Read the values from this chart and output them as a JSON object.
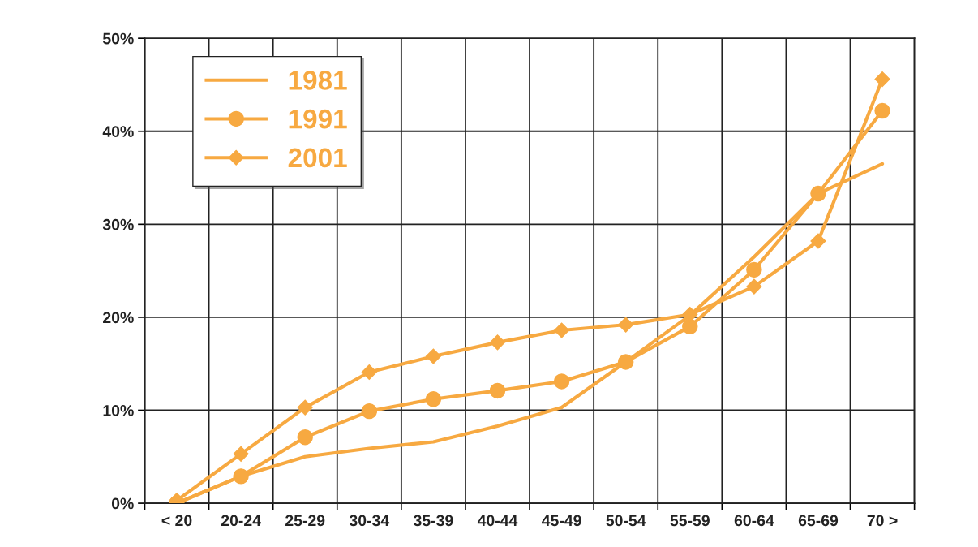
{
  "chart_data": {
    "type": "line",
    "categories": [
      "< 20",
      "20-24",
      "25-29",
      "30-34",
      "35-39",
      "40-44",
      "45-49",
      "50-54",
      "55-59",
      "60-64",
      "65-69",
      "70 >"
    ],
    "series": [
      {
        "name": "1981",
        "color": "#f7a941",
        "marker": "none",
        "values": [
          0,
          2.9,
          5.0,
          5.9,
          6.6,
          8.3,
          10.3,
          15.2,
          20.2,
          26.5,
          33.3,
          36.5
        ]
      },
      {
        "name": "1991",
        "color": "#f7a941",
        "marker": "circle",
        "values": [
          0,
          2.9,
          7.1,
          9.9,
          11.2,
          12.1,
          13.1,
          15.2,
          19.0,
          25.1,
          33.3,
          42.2
        ]
      },
      {
        "name": "2001",
        "color": "#f7a941",
        "marker": "diamond",
        "values": [
          0.3,
          5.3,
          10.3,
          14.1,
          15.8,
          17.3,
          18.6,
          19.2,
          20.3,
          23.3,
          28.2,
          45.6
        ]
      }
    ],
    "ylim": [
      0,
      50
    ],
    "yticks": [
      {
        "value": 0,
        "label": "0%"
      },
      {
        "value": 10,
        "label": "10%"
      },
      {
        "value": 20,
        "label": "20%"
      },
      {
        "value": 30,
        "label": "30%"
      },
      {
        "value": 40,
        "label": "40%"
      },
      {
        "value": 50,
        "label": "50%"
      }
    ],
    "grid": true,
    "legend": "top left",
    "line_style": "solid"
  }
}
